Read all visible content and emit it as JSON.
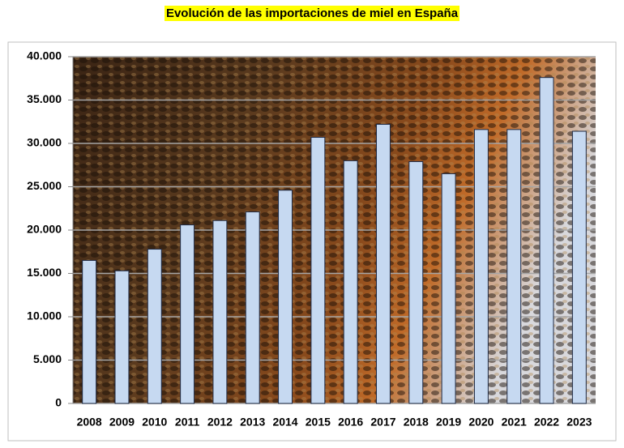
{
  "chart_data": {
    "type": "bar",
    "title": "Evolución de las importaciones de miel en España",
    "categories": [
      "2008",
      "2009",
      "2010",
      "2011",
      "2012",
      "2013",
      "2014",
      "2015",
      "2016",
      "2017",
      "2018",
      "2019",
      "2020",
      "2021",
      "2022",
      "2023"
    ],
    "values": [
      16500,
      15300,
      17800,
      20600,
      21100,
      22100,
      24600,
      30700,
      28000,
      32200,
      27900,
      26500,
      31600,
      31600,
      37600,
      31400
    ],
    "color": "#c6d9f1",
    "ylim": [
      0,
      40000
    ],
    "yticks": [
      0,
      {
        "value": 5000,
        "label": "5.000"
      },
      {
        "value": 10000,
        "label": "10.000"
      },
      {
        "value": 15000,
        "label": "15.000"
      },
      {
        "value": 20000,
        "label": "20.000"
      },
      {
        "value": 25000,
        "label": "25.000"
      },
      {
        "value": 30000,
        "label": "30.000"
      },
      {
        "value": 35000,
        "label": "35.000"
      },
      {
        "value": 40000,
        "label": "40.000"
      }
    ],
    "grid": true
  }
}
